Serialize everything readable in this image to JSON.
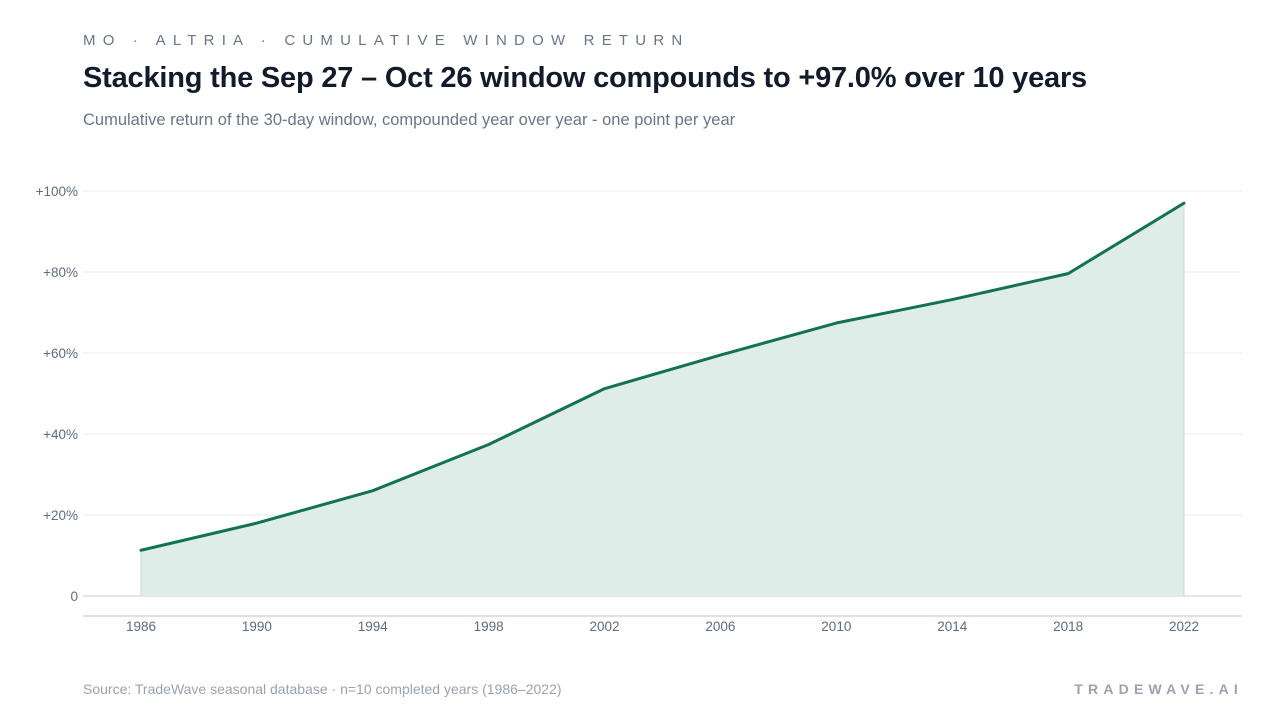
{
  "header": {
    "kicker": "MO · ALTRIA · CUMULATIVE WINDOW RETURN",
    "title": "Stacking the Sep 27 – Oct 26 window compounds to +97.0% over 10 years",
    "subtitle": "Cumulative return of the 30-day window, compounded year over year - one point per year"
  },
  "footer": {
    "source": "Source: TradeWave seasonal database · n=10 completed years (1986–2022)",
    "brand": "TRADEWAVE.AI"
  },
  "colors": {
    "line": "#137350",
    "area": "#deede7",
    "grid": "#e8ebef",
    "axis": "#c9ced6",
    "tick_text": "#5f6b7e"
  },
  "chart_data": {
    "type": "area",
    "x": [
      1986,
      1990,
      1994,
      1998,
      2002,
      2006,
      2010,
      2014,
      2018,
      2022
    ],
    "series": [
      {
        "values": [
          11.3,
          18.0,
          26.0,
          37.4,
          51.2,
          59.5,
          67.4,
          73.2,
          79.6,
          97.0
        ]
      }
    ],
    "y_ticks": [
      0,
      20,
      40,
      60,
      80,
      100
    ],
    "y_tick_labels": [
      "0",
      "+20%",
      "+40%",
      "+60%",
      "+80%",
      "+100%"
    ],
    "x_tick_labels": [
      "1986",
      "1990",
      "1994",
      "1998",
      "2002",
      "2006",
      "2010",
      "2014",
      "2018",
      "2022"
    ],
    "ylim": [
      0,
      100
    ],
    "grid": true
  }
}
